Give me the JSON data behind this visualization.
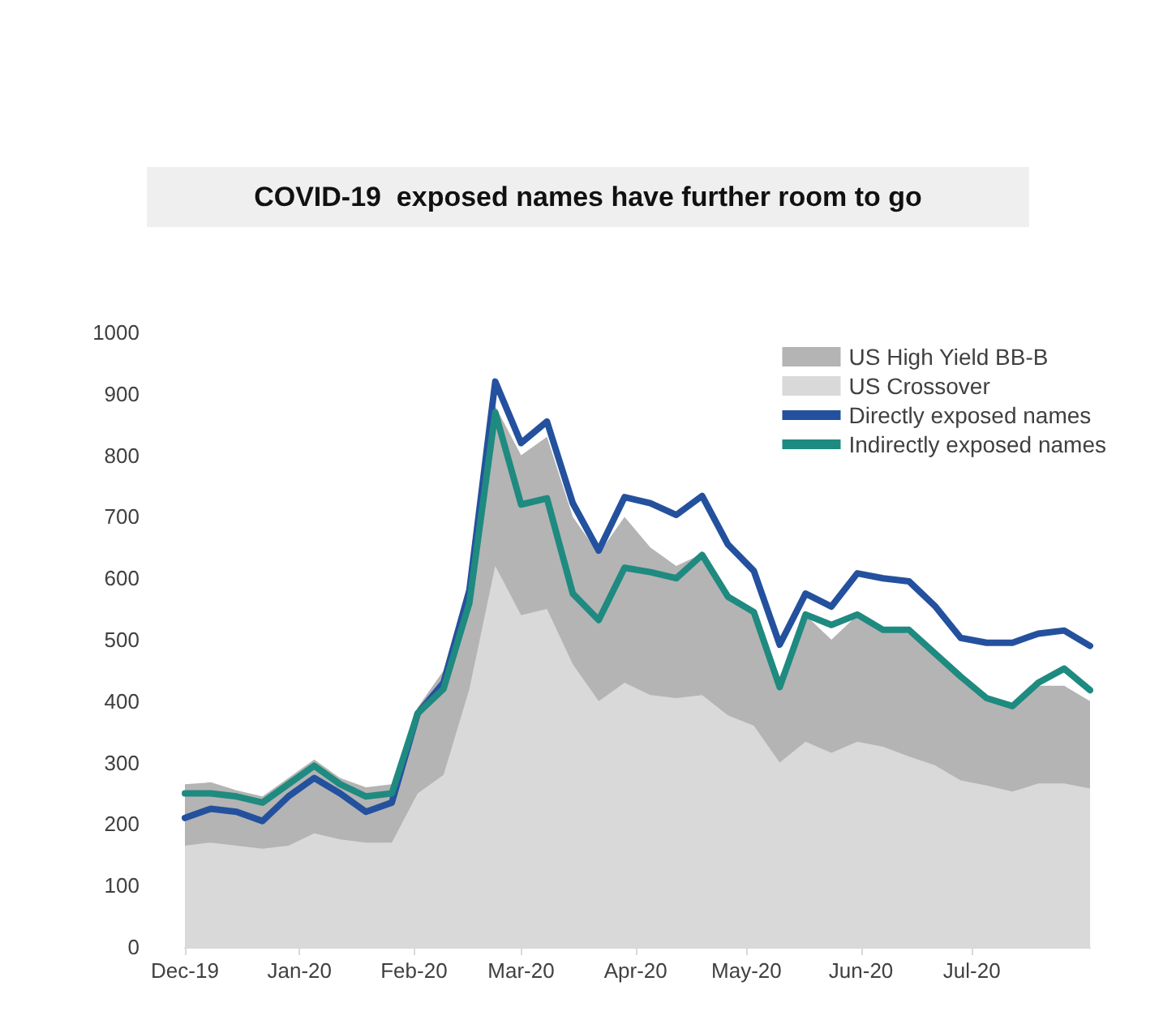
{
  "chart_data": {
    "type": "area",
    "title": "COVID-19  exposed names have further room to go",
    "x": [
      "2019-12-01",
      "2019-12-08",
      "2019-12-15",
      "2019-12-22",
      "2019-12-29",
      "2020-01-05",
      "2020-01-12",
      "2020-01-19",
      "2020-01-26",
      "2020-02-02",
      "2020-02-09",
      "2020-02-16",
      "2020-02-23",
      "2020-03-01",
      "2020-03-08",
      "2020-03-15",
      "2020-03-22",
      "2020-03-29",
      "2020-04-05",
      "2020-04-12",
      "2020-04-19",
      "2020-04-26",
      "2020-05-03",
      "2020-05-10",
      "2020-05-17",
      "2020-05-24",
      "2020-05-31",
      "2020-06-07",
      "2020-06-14",
      "2020-06-21",
      "2020-06-28",
      "2020-07-05",
      "2020-07-12",
      "2020-07-19",
      "2020-07-26",
      "2020-08-02"
    ],
    "series": [
      {
        "name": "US High Yield BB-B",
        "color": "#b4b4b4",
        "values": [
          265,
          268,
          255,
          245,
          275,
          305,
          275,
          260,
          265,
          390,
          450,
          600,
          880,
          800,
          830,
          700,
          640,
          700,
          650,
          620,
          640,
          570,
          540,
          440,
          540,
          500,
          540,
          520,
          510,
          480,
          440,
          410,
          395,
          425,
          425,
          400
        ]
      },
      {
        "name": "US Crossover",
        "color": "#d9d9d9",
        "values": [
          165,
          170,
          165,
          160,
          165,
          185,
          175,
          170,
          170,
          250,
          280,
          420,
          620,
          540,
          550,
          460,
          400,
          430,
          410,
          405,
          410,
          377,
          360,
          300,
          334,
          316,
          334,
          326,
          310,
          296,
          271,
          263,
          253,
          266,
          266,
          258
        ]
      },
      {
        "name": "Directly exposed names",
        "type": "line",
        "color": "#24519e",
        "values": [
          210,
          225,
          220,
          205,
          245,
          275,
          250,
          220,
          235,
          380,
          430,
          580,
          920,
          820,
          855,
          722,
          645,
          732,
          722,
          703,
          734,
          655,
          612,
          492,
          575,
          554,
          608,
          600,
          595,
          555,
          503,
          495,
          495,
          510,
          515,
          490
        ]
      },
      {
        "name": "Indirectly exposed names",
        "type": "line",
        "color": "#1f8a80",
        "values": [
          250,
          250,
          245,
          235,
          265,
          295,
          265,
          245,
          250,
          380,
          420,
          560,
          870,
          720,
          730,
          575,
          532,
          617,
          610,
          600,
          638,
          570,
          545,
          423,
          541,
          524,
          541,
          516,
          516,
          478,
          440,
          405,
          392,
          430,
          453,
          418
        ]
      }
    ],
    "xlim": [
      "2019-12-01",
      "2020-08-02"
    ],
    "xticks": [
      {
        "value": "2019-12-01",
        "label": "Dec-19"
      },
      {
        "value": "2020-01-01",
        "label": "Jan-20"
      },
      {
        "value": "2020-02-01",
        "label": "Feb-20"
      },
      {
        "value": "2020-03-01",
        "label": "Mar-20"
      },
      {
        "value": "2020-04-01",
        "label": "Apr-20"
      },
      {
        "value": "2020-05-01",
        "label": "May-20"
      },
      {
        "value": "2020-06-01",
        "label": "Jun-20"
      },
      {
        "value": "2020-07-01",
        "label": "Jul-20"
      }
    ],
    "ylim": [
      0,
      1000
    ],
    "yticks": [
      0,
      100,
      200,
      300,
      400,
      500,
      600,
      700,
      800,
      900,
      1000
    ],
    "legend": "top right"
  }
}
